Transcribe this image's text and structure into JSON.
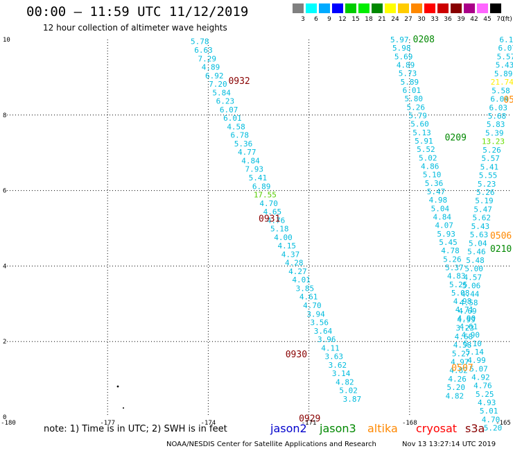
{
  "header": {
    "title": "00:00 – 11:59 UTC 11/12/2019",
    "subtitle": "12 hour collection of altimeter wave heights"
  },
  "colorbar": {
    "labels": [
      "3",
      "6",
      "9",
      "12",
      "15",
      "18",
      "21",
      "24",
      "27",
      "30",
      "33",
      "36",
      "39",
      "42",
      "45",
      "70"
    ],
    "unit": "(ft)",
    "colors": [
      "#808080",
      "#00ffff",
      "#00aaff",
      "#0000ff",
      "#00cc00",
      "#00ee00",
      "#008800",
      "#ffff00",
      "#ffcc00",
      "#ff8800",
      "#ff0000",
      "#cc0000",
      "#880000",
      "#aa0088",
      "#ff66ff",
      "#000000"
    ]
  },
  "map": {
    "x_ticks": [
      "-180",
      "-177",
      "-174",
      "-171",
      "-168",
      "-165"
    ],
    "y_ticks": [
      "0",
      "2",
      "4",
      "6",
      "8",
      "10"
    ],
    "lon_range": [
      -180,
      -165
    ],
    "lat_range": [
      0,
      10
    ]
  },
  "track_labels": [
    {
      "text": "0932",
      "lon": -173.4,
      "lat": 8.9,
      "color": "#880000"
    },
    {
      "text": "0931",
      "lon": -172.5,
      "lat": 5.25,
      "color": "#880000"
    },
    {
      "text": "0930",
      "lon": -171.7,
      "lat": 1.65,
      "color": "#880000"
    },
    {
      "text": "0929",
      "lon": -171.3,
      "lat": -0.05,
      "color": "#880000"
    },
    {
      "text": "0208",
      "lon": -167.9,
      "lat": 10.0,
      "color": "#008800"
    },
    {
      "text": "0209",
      "lon": -166.95,
      "lat": 7.4,
      "color": "#008800"
    },
    {
      "text": "0210",
      "lon": -165.6,
      "lat": 4.45,
      "color": "#008800"
    },
    {
      "text": "0506",
      "lon": -165.6,
      "lat": 4.8,
      "color": "#ff8800"
    },
    {
      "text": "0507",
      "lon": -166.75,
      "lat": 1.3,
      "color": "#ff8800"
    },
    {
      "text": "05",
      "lon": -165.2,
      "lat": 8.4,
      "color": "#ff8800"
    }
  ],
  "track_a": {
    "color": "#00bbdd",
    "start": {
      "lon": -174.25,
      "lat": 9.95
    },
    "step": {
      "lon": 0.108,
      "lat": -0.2255
    },
    "values": [
      "5.78",
      "6.63",
      "7.29",
      "4.89",
      "6.92",
      "7.20",
      "5.84",
      "6.23",
      "6.07",
      "6.01",
      "4.58",
      "6.78",
      "5.36",
      "4.77",
      "4.84",
      "7.93",
      "5.41",
      "6.89",
      "17.55",
      "4.70",
      "4.65",
      "4.76",
      "5.18",
      "4.00",
      "4.15",
      "4.37",
      "4.28",
      "4.27",
      "4.01",
      "3.85",
      "4.61",
      "4.70",
      "3.94",
      "3.56",
      "3.64",
      "3.96",
      "4.11",
      "3.63",
      "3.62",
      "3.14",
      "4.82",
      "5.02",
      "3.87"
    ],
    "special": {
      "18": "#55cc00"
    }
  },
  "track_b": {
    "color": "#00bbdd",
    "start": {
      "lon": -168.3,
      "lat": 10.0
    },
    "step": {
      "lon": 0.0605,
      "lat": -0.2236
    },
    "values": [
      "5.97",
      "5.98",
      "5.69",
      "4.89",
      "5.73",
      "5.89",
      "6.01",
      "5.80",
      "5.26",
      "5.79",
      "5.60",
      "5.13",
      "5.91",
      "5.52",
      "5.02",
      "4.86",
      "5.10",
      "5.36",
      "5.47",
      "4.98",
      "5.04",
      "4.84",
      "4.07",
      "5.93",
      "5.45",
      "4.78",
      "5.26",
      "5.37",
      "4.83",
      "5.25",
      "5.08",
      "4.98",
      "4.71",
      "4.90",
      "4.61",
      "4.90",
      "5.10",
      "5.14",
      "4.99",
      "5.07",
      "4.92",
      "4.76",
      "5.25",
      "4.93",
      "5.01",
      "4.70",
      "5.20"
    ]
  },
  "track_c": {
    "color": "#00bbdd",
    "start": {
      "lon": -165.05,
      "lat": 10.0
    },
    "step": {
      "lon": -0.0382,
      "lat": -0.2247
    },
    "values": [
      "6.12",
      "6.07",
      "5.57",
      "5.43",
      "5.89",
      "21.74",
      "5.58",
      "6.04",
      "6.03",
      "5.68",
      "5.83",
      "5.39",
      "13.23",
      "5.26",
      "5.57",
      "5.41",
      "5.55",
      "5.23",
      "5.26",
      "5.19",
      "5.47",
      "5.62",
      "5.43",
      "5.63",
      "5.04",
      "5.46",
      "5.48",
      "5.00",
      "4.57",
      "5.06",
      "4.44",
      "4.58",
      "4.69",
      "4.99",
      "3.23",
      "4.68",
      "4.58",
      "5.27",
      "4.97",
      "4.82",
      "4.26",
      "5.20",
      "4.82"
    ],
    "special": {
      "5": "#ffee00",
      "12": "#66dd00"
    },
    "shift": [
      [
        20,
        0.45
      ],
      [
        21,
        0.5
      ],
      [
        22,
        0.55
      ]
    ]
  },
  "legend": {
    "note": "note:  1) Time is in UTC;  2) SWH is in feet",
    "satellites": [
      {
        "name": "jason2",
        "color": "#0000cc"
      },
      {
        "name": "jason3",
        "color": "#008800"
      },
      {
        "name": "altika",
        "color": "#ff8800"
      },
      {
        "name": "cryosat",
        "color": "#ff0000"
      },
      {
        "name": "s3a",
        "color": "#880000"
      }
    ],
    "credit": "NOAA/NESDIS Center for Satellite Applications and Research",
    "timestamp": "Nov 13 13:27:14 UTC 2019"
  }
}
